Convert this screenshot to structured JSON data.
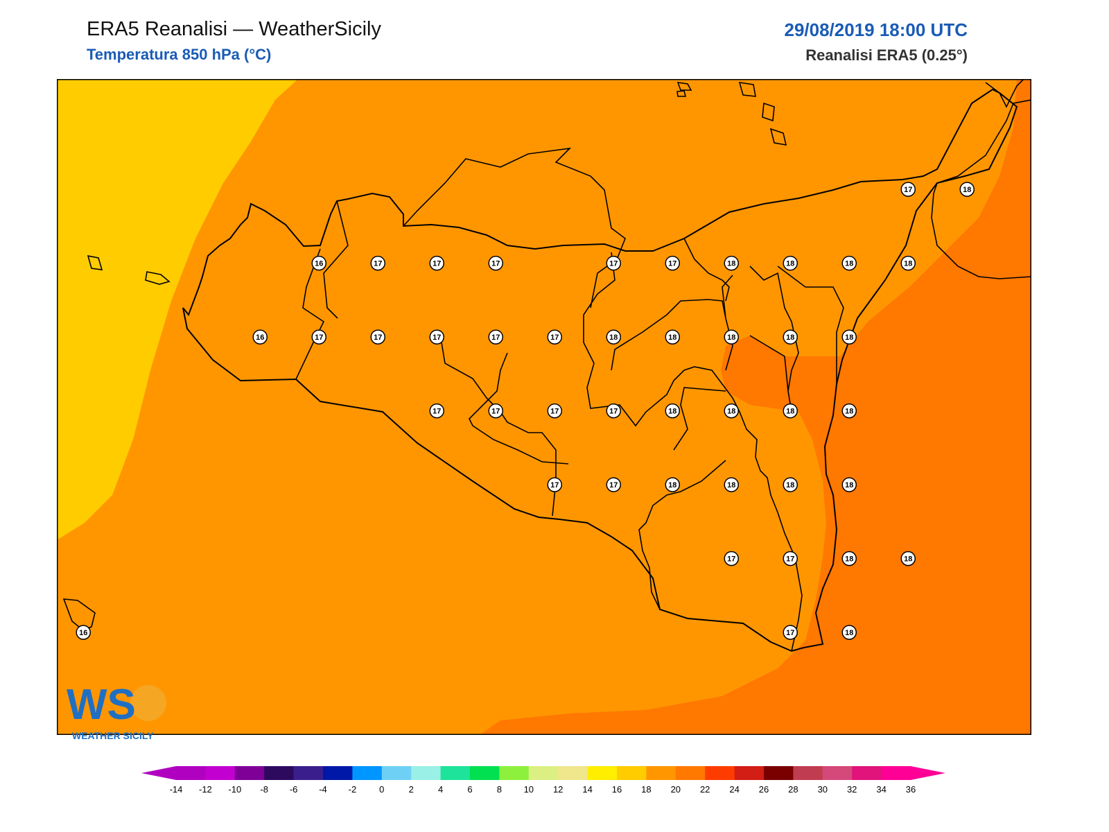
{
  "header": {
    "title": "ERA5 Reanalisi — WeatherSicily",
    "variable": "Temperatura 850 hPa (°C)",
    "datetime": "29/08/2019 18:00 UTC",
    "resolution": "Reanalisi ERA5 (0.25°)"
  },
  "logo": {
    "text": "WEATHER SICILY",
    "monogram": "WS"
  },
  "colorbar": {
    "ticks": [
      "-14",
      "-12",
      "-10",
      "-8",
      "-6",
      "-4",
      "-2",
      "0",
      "2",
      "4",
      "6",
      "8",
      "10",
      "12",
      "14",
      "16",
      "18",
      "20",
      "22",
      "24",
      "26",
      "28",
      "30",
      "32",
      "34",
      "36"
    ],
    "colors": [
      "#b000c0",
      "#c200d0",
      "#7e0097",
      "#2d0a5e",
      "#3a1f8c",
      "#0018a8",
      "#0096ff",
      "#6fd0f5",
      "#9af0e6",
      "#1ee39a",
      "#00e050",
      "#8cf03c",
      "#dcef82",
      "#f0e68c",
      "#ffee00",
      "#ffcc00",
      "#ff9600",
      "#ff7800",
      "#ff3c00",
      "#d21e14",
      "#7a0000",
      "#c03c50",
      "#d4497a",
      "#e0147a",
      "#ff0096"
    ]
  },
  "map_values": [
    {
      "v": "16",
      "c": 4.45,
      "r": 2.4
    },
    {
      "v": "17",
      "c": 5.45,
      "r": 2.4
    },
    {
      "v": "17",
      "c": 6.45,
      "r": 2.4
    },
    {
      "v": "17",
      "c": 7.45,
      "r": 2.4
    },
    {
      "v": "17",
      "c": 9.45,
      "r": 2.4
    },
    {
      "v": "17",
      "c": 10.45,
      "r": 2.4
    },
    {
      "v": "18",
      "c": 11.45,
      "r": 2.4
    },
    {
      "v": "18",
      "c": 12.45,
      "r": 2.4
    },
    {
      "v": "18",
      "c": 13.45,
      "r": 2.4
    },
    {
      "v": "18",
      "c": 14.45,
      "r": 2.4
    },
    {
      "v": "17",
      "c": 14.45,
      "r": 1.4
    },
    {
      "v": "18",
      "c": 15.45,
      "r": 1.4
    },
    {
      "v": "16",
      "c": 3.45,
      "r": 3.4
    },
    {
      "v": "17",
      "c": 4.45,
      "r": 3.4
    },
    {
      "v": "17",
      "c": 5.45,
      "r": 3.4
    },
    {
      "v": "17",
      "c": 6.45,
      "r": 3.4
    },
    {
      "v": "17",
      "c": 7.45,
      "r": 3.4
    },
    {
      "v": "17",
      "c": 8.45,
      "r": 3.4
    },
    {
      "v": "18",
      "c": 9.45,
      "r": 3.4
    },
    {
      "v": "18",
      "c": 10.45,
      "r": 3.4
    },
    {
      "v": "18",
      "c": 11.45,
      "r": 3.4
    },
    {
      "v": "18",
      "c": 12.45,
      "r": 3.4
    },
    {
      "v": "18",
      "c": 13.45,
      "r": 3.4
    },
    {
      "v": "17",
      "c": 6.45,
      "r": 4.4
    },
    {
      "v": "17",
      "c": 7.45,
      "r": 4.4
    },
    {
      "v": "17",
      "c": 8.45,
      "r": 4.4
    },
    {
      "v": "17",
      "c": 9.45,
      "r": 4.4
    },
    {
      "v": "18",
      "c": 10.45,
      "r": 4.4
    },
    {
      "v": "18",
      "c": 11.45,
      "r": 4.4
    },
    {
      "v": "18",
      "c": 12.45,
      "r": 4.4
    },
    {
      "v": "18",
      "c": 13.45,
      "r": 4.4
    },
    {
      "v": "17",
      "c": 8.45,
      "r": 5.4
    },
    {
      "v": "17",
      "c": 9.45,
      "r": 5.4
    },
    {
      "v": "18",
      "c": 10.45,
      "r": 5.4
    },
    {
      "v": "18",
      "c": 11.45,
      "r": 5.4
    },
    {
      "v": "18",
      "c": 12.45,
      "r": 5.4
    },
    {
      "v": "18",
      "c": 13.45,
      "r": 5.4
    },
    {
      "v": "17",
      "c": 11.45,
      "r": 6.4
    },
    {
      "v": "17",
      "c": 12.45,
      "r": 6.4
    },
    {
      "v": "18",
      "c": 13.45,
      "r": 6.4
    },
    {
      "v": "18",
      "c": 14.45,
      "r": 6.4
    },
    {
      "v": "17",
      "c": 12.45,
      "r": 7.4
    },
    {
      "v": "18",
      "c": 13.45,
      "r": 7.4
    },
    {
      "v": "16",
      "c": 0.45,
      "r": 7.4
    }
  ]
}
